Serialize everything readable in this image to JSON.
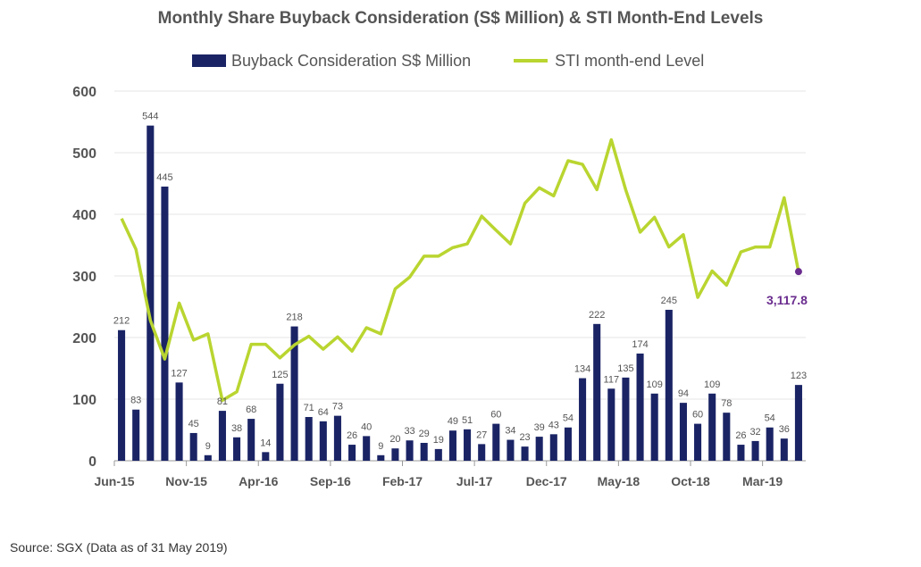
{
  "colors": {
    "bar": "#1a2465",
    "line": "#b9d530",
    "last_point": "#6a2c8e",
    "grid": "#e6e6e6",
    "axis": "#999999"
  },
  "chart_data": {
    "type": "bar",
    "title": "Monthly Share Buyback Consideration (S$ Million) & STI Month-End Levels",
    "xlabel": "",
    "ylabel": "",
    "ylim": [
      0,
      600
    ],
    "yticks": [
      0,
      100,
      200,
      300,
      400,
      500,
      600
    ],
    "grid": true,
    "legend_position": "top",
    "x": [
      "Jun-15",
      "Jul-15",
      "Aug-15",
      "Sep-15",
      "Oct-15",
      "Nov-15",
      "Dec-15",
      "Jan-16",
      "Feb-16",
      "Mar-16",
      "Apr-16",
      "May-16",
      "Jun-16",
      "Jul-16",
      "Aug-16",
      "Sep-16",
      "Oct-16",
      "Nov-16",
      "Dec-16",
      "Jan-17",
      "Feb-17",
      "Mar-17",
      "Apr-17",
      "May-17",
      "Jun-17",
      "Jul-17",
      "Aug-17",
      "Sep-17",
      "Oct-17",
      "Nov-17",
      "Dec-17",
      "Jan-18",
      "Feb-18",
      "Mar-18",
      "Apr-18",
      "May-18",
      "Jun-18",
      "Jul-18",
      "Aug-18",
      "Sep-18",
      "Oct-18",
      "Nov-18",
      "Dec-18",
      "Jan-19",
      "Feb-19",
      "Mar-19",
      "Apr-19",
      "May-19"
    ],
    "x_tick_labels": [
      {
        "index": 0,
        "label": "Jun-15"
      },
      {
        "index": 5,
        "label": "Nov-15"
      },
      {
        "index": 10,
        "label": "Apr-16"
      },
      {
        "index": 15,
        "label": "Sep-16"
      },
      {
        "index": 20,
        "label": "Feb-17"
      },
      {
        "index": 25,
        "label": "Jul-17"
      },
      {
        "index": 30,
        "label": "Dec-17"
      },
      {
        "index": 35,
        "label": "May-18"
      },
      {
        "index": 40,
        "label": "Oct-18"
      },
      {
        "index": 45,
        "label": "Mar-19"
      }
    ],
    "series": [
      {
        "name": "Buyback Consideration S$ Million",
        "type": "bar",
        "values": [
          212,
          83,
          544,
          445,
          127,
          45,
          9,
          81,
          38,
          68,
          14,
          125,
          218,
          71,
          64,
          73,
          26,
          40,
          9,
          20,
          33,
          29,
          19,
          49,
          51,
          27,
          60,
          34,
          23,
          39,
          43,
          54,
          134,
          222,
          117,
          135,
          174,
          109,
          245,
          94,
          60,
          109,
          78,
          26,
          32,
          54,
          36,
          123
        ],
        "labels": [
          "212",
          "83",
          "544",
          "445",
          "127",
          "45",
          "9",
          "81",
          "38",
          "68",
          "14",
          "125",
          "218",
          "71",
          "64",
          "73",
          "26",
          "40",
          "9",
          "20",
          "33",
          "29",
          "19",
          "49",
          "51",
          "27",
          "60",
          "34",
          "23",
          "39",
          "43",
          "54",
          "134",
          "222",
          "117",
          "135",
          "174",
          "109",
          "245",
          "94",
          "60",
          "109",
          "78",
          "26",
          "32",
          "54",
          "36",
          "123"
        ]
      },
      {
        "name": "STI month-end Level",
        "type": "line",
        "values": [
          393,
          343,
          228,
          165,
          256,
          196,
          206,
          98,
          112,
          189,
          189,
          167,
          188,
          202,
          181,
          201,
          178,
          216,
          206,
          279,
          298,
          332,
          332,
          346,
          352,
          397,
          374,
          352,
          418,
          443,
          430,
          487,
          481,
          440,
          521,
          440,
          371,
          395,
          347,
          367,
          265,
          308,
          285,
          339,
          347,
          347,
          427,
          307
        ],
        "last_label": "3,117.8"
      }
    ]
  },
  "source_note": "Source: SGX (Data as of 31 May 2019)"
}
